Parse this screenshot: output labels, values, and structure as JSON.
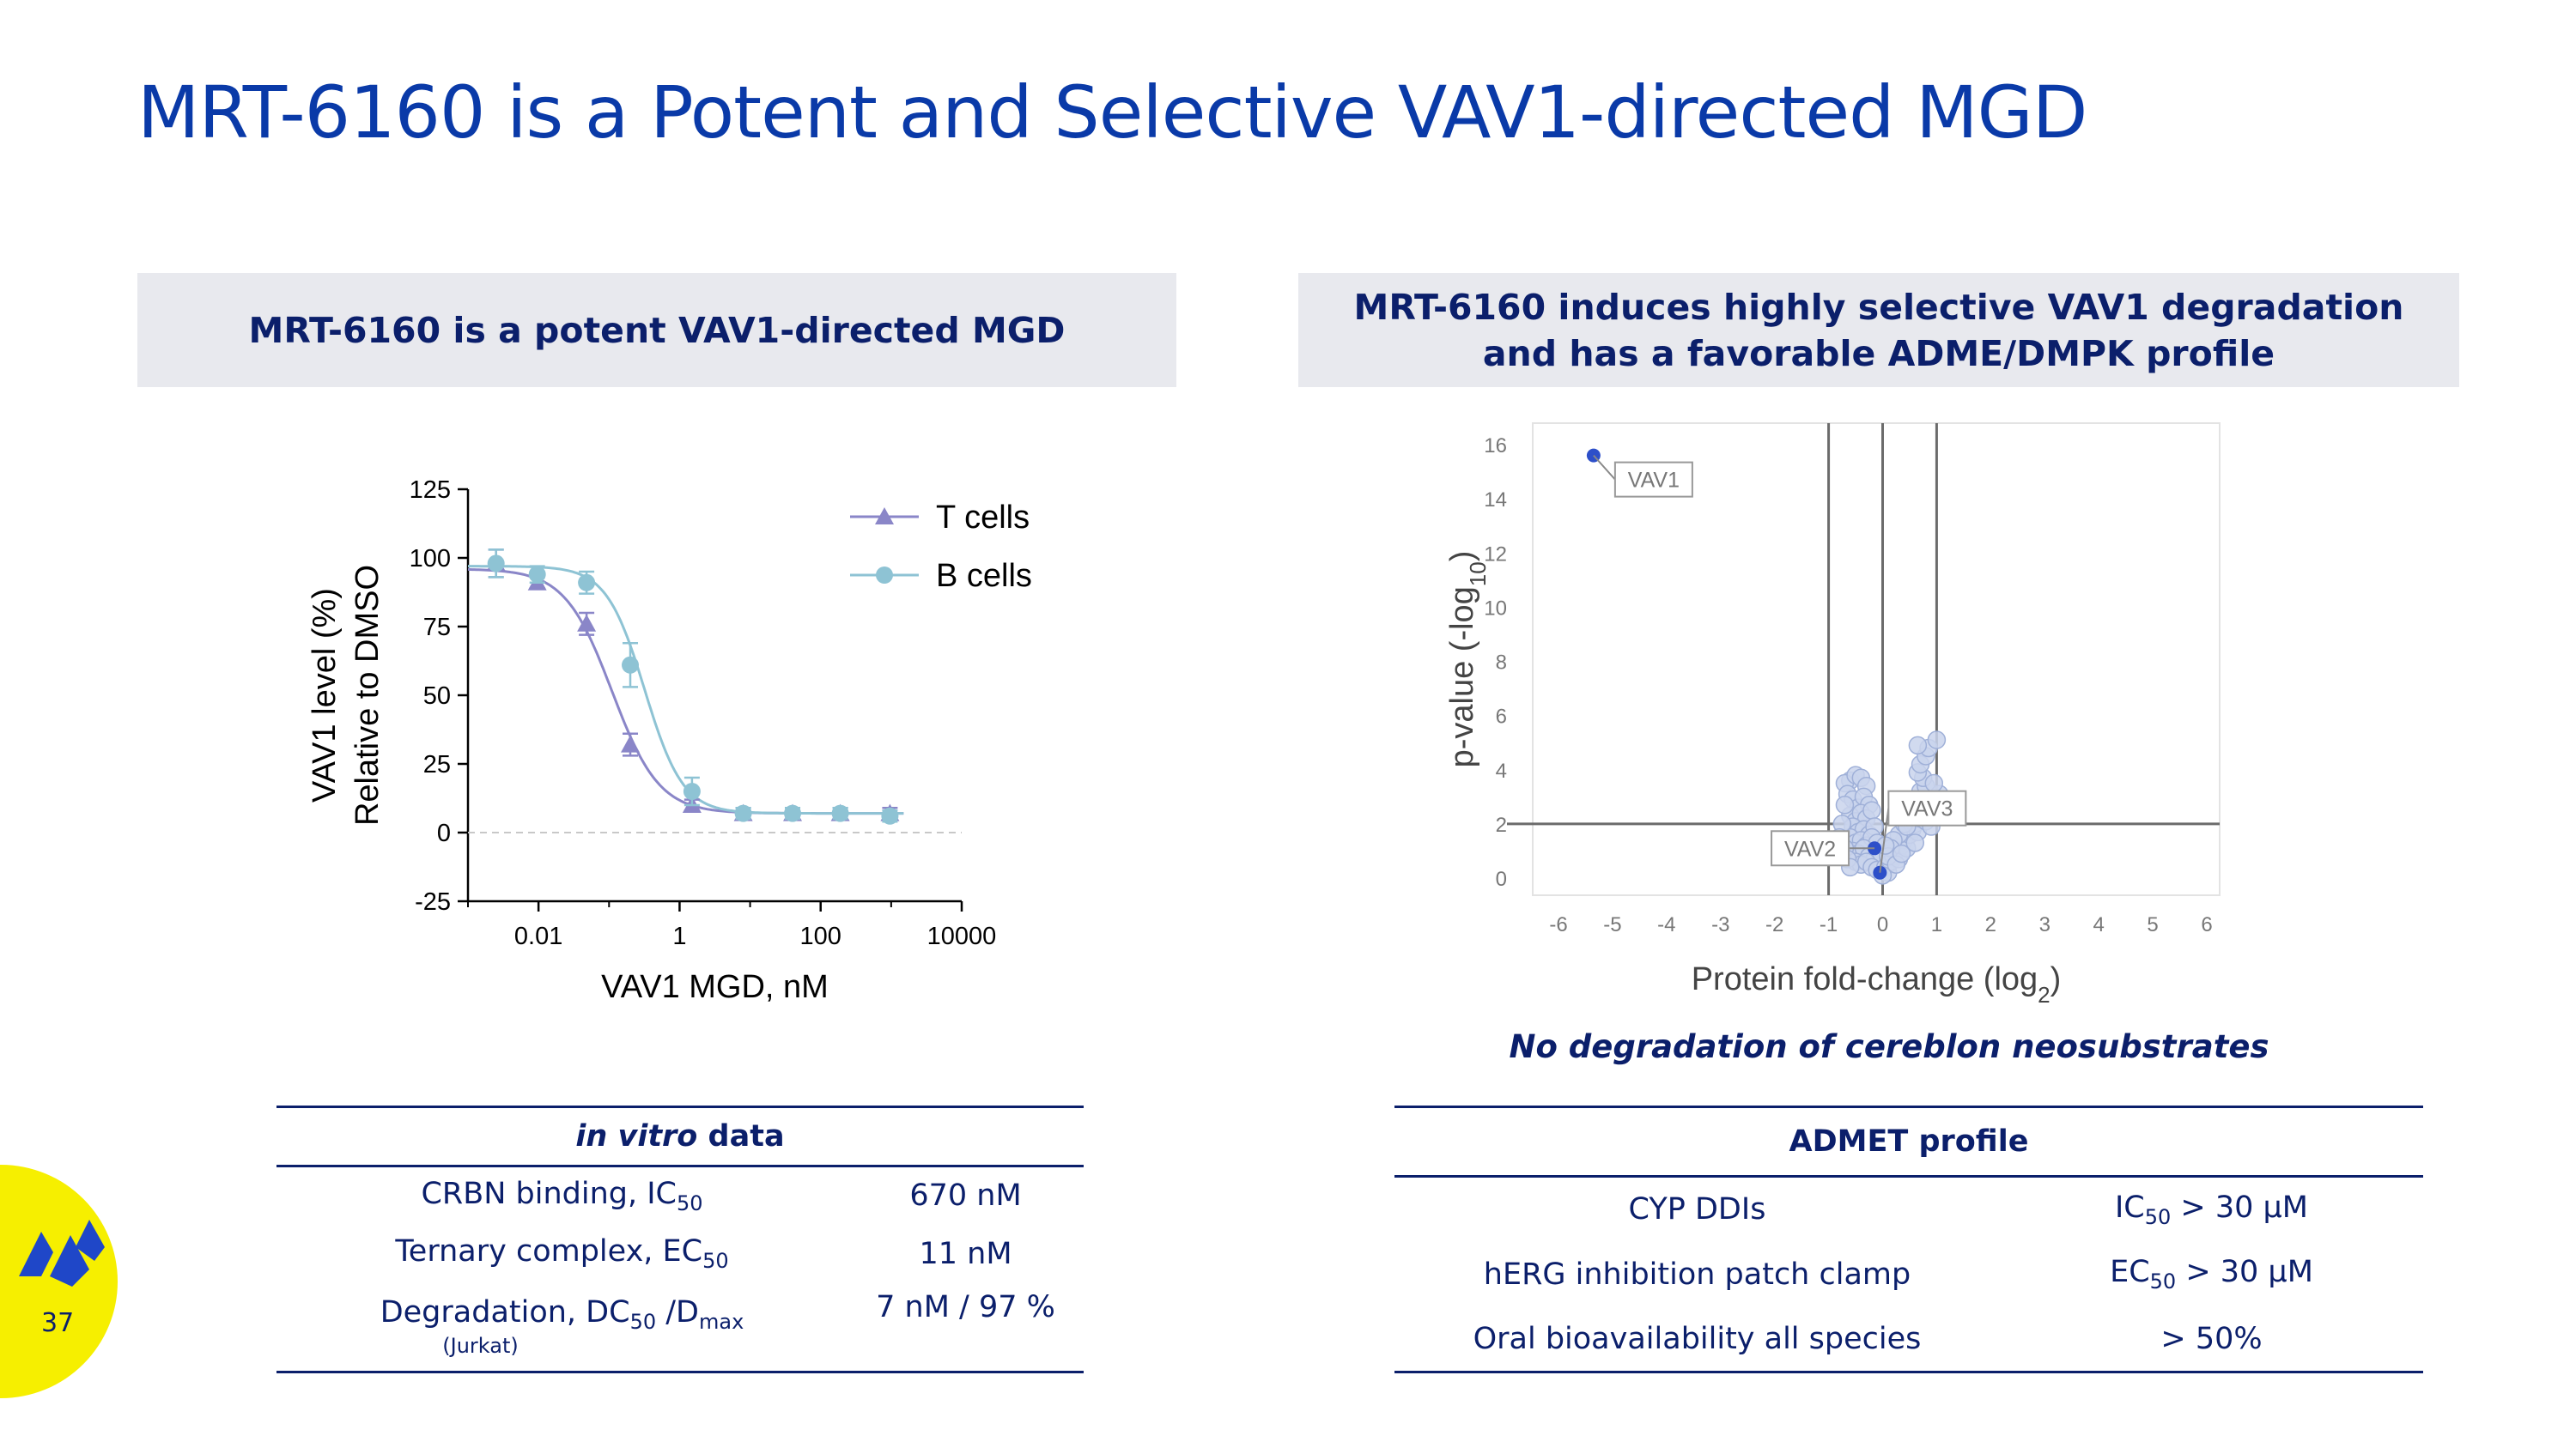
{
  "slide": {
    "title": "MRT-6160 is a Potent and Selective VAV1-directed MGD",
    "page_number": "37"
  },
  "left_panel": {
    "header": "MRT-6160 is a potent VAV1-directed MGD"
  },
  "right_panel": {
    "header_line1": "MRT-6160 induces highly selective VAV1 degradation",
    "header_line2": "and has a favorable ADME/DMPK profile",
    "note": "No degradation of cereblon neosubstrates"
  },
  "vitro_table": {
    "title_italic": "in vitro",
    "title_rest": " data",
    "rows": [
      {
        "label": "CRBN binding, IC",
        "sub": "50",
        "label2": "",
        "sub2": "",
        "value": "670 nM",
        "note": ""
      },
      {
        "label": "Ternary complex, EC",
        "sub": "50",
        "label2": "",
        "sub2": "",
        "value": "11 nM",
        "note": ""
      },
      {
        "label": "Degradation, DC",
        "sub": "50",
        "label2": " /D",
        "sub2": "max",
        "value": "7 nM / 97 %",
        "note": "(Jurkat)"
      }
    ]
  },
  "admet_table": {
    "title": "ADMET profile",
    "rows": [
      {
        "label": "CYP DDIs",
        "v_pre": "IC",
        "v_sub": "50",
        "v_post": " > 30 μM"
      },
      {
        "label": "hERG inhibition patch clamp",
        "v_pre": "EC",
        "v_sub": "50",
        "v_post": " > 30 μM"
      },
      {
        "label": "Oral bioavailability all species",
        "v_pre": "",
        "v_sub": "",
        "v_post": "> 50%"
      }
    ]
  },
  "colors": {
    "title_blue": "#0a3aa8",
    "navy": "#0b1f6b",
    "t_cells": "#8a86c8",
    "b_cells": "#8ec3d4",
    "volcano_point": "#c9d3ec",
    "volcano_highlight": "#2d4fc9",
    "badge_yellow": "#f6ef00"
  },
  "chart_data": [
    {
      "type": "line",
      "title": "",
      "xlabel": "VAV1 MGD, nM",
      "ylabel_line1": "VAV1 level (%)",
      "ylabel_line2": "Relative to DMSO",
      "x_scale": "log10",
      "xlim": [
        0.001,
        10000
      ],
      "ylim": [
        -25,
        125
      ],
      "x_ticks": [
        0.01,
        1,
        100,
        10000
      ],
      "x_tick_labels": [
        "0.01",
        "1",
        "100",
        "10000"
      ],
      "y_ticks": [
        -25,
        0,
        25,
        50,
        75,
        100,
        125
      ],
      "y_tick_labels": [
        "-25",
        "0",
        "25",
        "50",
        "75",
        "100",
        "125"
      ],
      "legend_position": "top-right",
      "reference_line_y": 0,
      "series": [
        {
          "name": "T cells",
          "marker": "triangle",
          "x": [
            0.0025,
            0.0096,
            0.048,
            0.2,
            1.5,
            8,
            40,
            190,
            960
          ],
          "y": [
            98,
            91,
            76,
            32,
            10,
            7,
            7,
            7,
            7
          ],
          "err": [
            5,
            2,
            4,
            4,
            2,
            2,
            2,
            2,
            2
          ],
          "fit": {
            "top": 96,
            "bottom": 7,
            "ec50": 0.11,
            "hill": 1.3
          }
        },
        {
          "name": "B cells",
          "marker": "circle",
          "x": [
            0.0025,
            0.0096,
            0.048,
            0.2,
            1.5,
            8,
            40,
            190,
            960
          ],
          "y": [
            98,
            94,
            91,
            61,
            15,
            7,
            7,
            7,
            6
          ],
          "err": [
            5,
            3,
            4,
            8,
            5,
            2,
            2,
            2,
            2
          ],
          "fit": {
            "top": 97,
            "bottom": 7,
            "ec50": 0.32,
            "hill": 1.6
          }
        }
      ]
    },
    {
      "type": "scatter",
      "title": "",
      "xlabel": "Protein fold-change (log",
      "xlabel_sub": "2",
      "xlabel_end": ")",
      "ylabel": "p-value (-log",
      "ylabel_sub": "10",
      "ylabel_end": ")",
      "xlim": [
        -6,
        6
      ],
      "ylim": [
        0,
        16
      ],
      "x_ticks": [
        -6,
        -5,
        -4,
        -3,
        -2,
        -1,
        0,
        1,
        2,
        3,
        4,
        5,
        6
      ],
      "x_tick_labels": [
        "-6",
        "-5",
        "-4",
        "-3",
        "-2",
        "-1",
        "0",
        "1",
        "2",
        "3",
        "4",
        "5",
        "6"
      ],
      "y_ticks": [
        0,
        2,
        4,
        6,
        8,
        10,
        12,
        14,
        16
      ],
      "y_tick_labels": [
        "0",
        "2",
        "4",
        "6",
        "8",
        "10",
        "12",
        "14",
        "16"
      ],
      "threshold_lines_x": [
        -1,
        0,
        1
      ],
      "threshold_line_y": 2,
      "labeled_points": [
        {
          "label": "VAV1",
          "x": -5.35,
          "y": 15.6
        },
        {
          "label": "VAV2",
          "x": -0.15,
          "y": 1.1
        },
        {
          "label": "VAV3",
          "x": -0.05,
          "y": 0.2
        }
      ],
      "bulk_points": [
        [
          -0.6,
          3.6
        ],
        [
          -0.7,
          3.5
        ],
        [
          -0.5,
          3.8
        ],
        [
          -0.4,
          3.7
        ],
        [
          -0.3,
          3.4
        ],
        [
          -0.65,
          3.1
        ],
        [
          -0.55,
          2.9
        ],
        [
          -0.45,
          2.6
        ],
        [
          -0.35,
          3.0
        ],
        [
          -0.25,
          2.7
        ],
        [
          -0.6,
          2.3
        ],
        [
          -0.5,
          2.1
        ],
        [
          -0.4,
          2.4
        ],
        [
          -0.3,
          2.2
        ],
        [
          -0.2,
          2.5
        ],
        [
          -0.55,
          1.9
        ],
        [
          -0.45,
          1.7
        ],
        [
          -0.35,
          1.8
        ],
        [
          -0.25,
          1.6
        ],
        [
          -0.15,
          1.9
        ],
        [
          -0.6,
          1.5
        ],
        [
          -0.5,
          1.3
        ],
        [
          -0.4,
          1.4
        ],
        [
          -0.3,
          1.2
        ],
        [
          -0.2,
          1.5
        ],
        [
          -0.1,
          1.3
        ],
        [
          -0.55,
          1.0
        ],
        [
          -0.45,
          0.9
        ],
        [
          -0.35,
          1.1
        ],
        [
          -0.25,
          0.8
        ],
        [
          -0.15,
          0.7
        ],
        [
          -0.05,
          0.9
        ],
        [
          -0.5,
          0.6
        ],
        [
          -0.4,
          0.5
        ],
        [
          -0.3,
          0.6
        ],
        [
          -0.2,
          0.4
        ],
        [
          -0.1,
          0.3
        ],
        [
          0.05,
          0.4
        ],
        [
          0.1,
          0.2
        ],
        [
          0.15,
          0.6
        ],
        [
          0.2,
          0.8
        ],
        [
          0.25,
          1.0
        ],
        [
          0.3,
          0.7
        ],
        [
          0.35,
          1.2
        ],
        [
          0.4,
          1.4
        ],
        [
          0.45,
          1.1
        ],
        [
          0.5,
          1.6
        ],
        [
          0.55,
          1.8
        ],
        [
          0.6,
          2.0
        ],
        [
          0.65,
          1.7
        ],
        [
          0.7,
          2.2
        ],
        [
          0.75,
          2.4
        ],
        [
          0.8,
          2.1
        ],
        [
          0.85,
          2.6
        ],
        [
          0.9,
          2.8
        ],
        [
          0.6,
          2.9
        ],
        [
          0.7,
          3.2
        ],
        [
          0.8,
          3.4
        ],
        [
          0.75,
          3.7
        ],
        [
          0.65,
          3.9
        ],
        [
          0.7,
          4.2
        ],
        [
          0.8,
          4.5
        ],
        [
          0.85,
          4.8
        ],
        [
          0.65,
          4.9
        ],
        [
          1.0,
          5.1
        ],
        [
          0.3,
          1.6
        ],
        [
          0.4,
          2.0
        ],
        [
          0.5,
          2.3
        ],
        [
          0.2,
          1.4
        ],
        [
          0.15,
          1.1
        ],
        [
          0.1,
          0.8
        ],
        [
          0.25,
          0.5
        ],
        [
          0.35,
          0.9
        ],
        [
          0.45,
          1.9
        ],
        [
          0.55,
          2.6
        ],
        [
          0.9,
          1.9
        ],
        [
          0.95,
          2.3
        ],
        [
          1.0,
          2.7
        ],
        [
          1.05,
          3.1
        ],
        [
          0.95,
          3.5
        ],
        [
          -0.7,
          2.7
        ],
        [
          -0.75,
          2.0
        ],
        [
          -0.8,
          1.5
        ],
        [
          -0.7,
          1.1
        ],
        [
          -0.65,
          0.7
        ],
        [
          -0.6,
          0.4
        ],
        [
          0.0,
          0.1
        ],
        [
          0.05,
          1.2
        ],
        [
          0.3,
          2.5
        ],
        [
          0.6,
          1.3
        ]
      ]
    }
  ]
}
